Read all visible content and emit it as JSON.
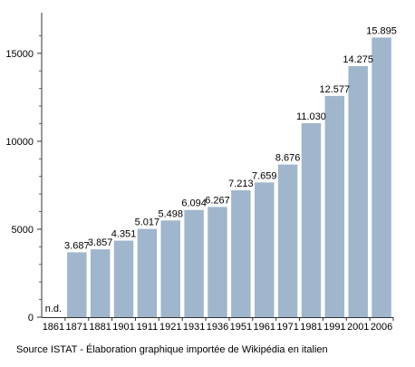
{
  "chart_data": {
    "type": "bar",
    "categories": [
      "1861",
      "1871",
      "1881",
      "1901",
      "1911",
      "1921",
      "1931",
      "1936",
      "1951",
      "1961",
      "1971",
      "1981",
      "1991",
      "2001",
      "2006"
    ],
    "values": [
      null,
      3687,
      3857,
      4351,
      5017,
      5498,
      6094,
      6267,
      7213,
      7659,
      8676,
      11030,
      12577,
      14275,
      15895
    ],
    "value_labels": [
      "n.d.",
      "3.687",
      "3.857",
      "4.351",
      "5.017",
      "5.498",
      "6.094",
      "6.267",
      "7.213",
      "7.659",
      "8.676",
      "11.030",
      "12.577",
      "14.275",
      "15.895"
    ],
    "y_ticks": [
      0,
      5000,
      10000,
      15000
    ],
    "y_tick_labels": [
      "0",
      "5000",
      "10000",
      "15000"
    ],
    "ylim": [
      0,
      17000
    ],
    "bar_color": "#9fb6cd",
    "grid": false,
    "xlabel": "",
    "ylabel": ""
  },
  "footer": {
    "source": "Source ISTAT - Élaboration graphique importée de Wikipédia en italien"
  }
}
